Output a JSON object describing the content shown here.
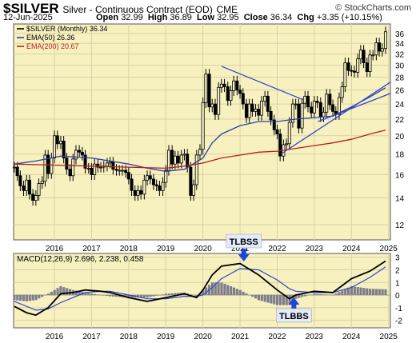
{
  "header": {
    "symbol": "$SILVER",
    "name": "Silver - Continuous Contract (EOD)",
    "exchange": "CME",
    "credit": "© StockCharts.com",
    "date": "12-Jun-2025",
    "open_label": "Open",
    "open": "32.99",
    "high_label": "High",
    "high": "36.89",
    "low_label": "Low",
    "low": "32.95",
    "close_label": "Close",
    "close": "36.34",
    "chg_label": "Chg",
    "chg": "+3.35 (+10.15%)"
  },
  "colors": {
    "panel_bg": "#f7f1c0",
    "candle": "#000000",
    "ema50": "#2d3fa8",
    "ema200": "#b81e1e",
    "trendline": "#3344cc",
    "macd": "#000000",
    "signal": "#3344cc",
    "histogram": "#7d7d8c",
    "annotation_bg": "#e3ebfa",
    "arrow": "#1d46d8"
  },
  "chart_data": [
    {
      "type": "candlestick",
      "timeframe": "monthly",
      "legend": [
        {
          "key": "price",
          "label": "$SILVER (Monthly) 36.34"
        },
        {
          "key": "ema50",
          "label": "EMA(50) 26.36"
        },
        {
          "key": "ema200",
          "label": "EMA(200) 20.67"
        }
      ],
      "yscale": "log",
      "ylim": [
        11,
        38
      ],
      "yticks": [
        12,
        14,
        16,
        18,
        20,
        22,
        24,
        26,
        28,
        30,
        32,
        34,
        36
      ],
      "xlim": [
        2015.4,
        2025.55
      ],
      "xticks": [
        "2016",
        "2017",
        "2018",
        "2019",
        "2020",
        "2021",
        "2022",
        "2023",
        "2024",
        "2025"
      ],
      "grid": true,
      "close": [
        [
          2015.42,
          16.7
        ],
        [
          2015.5,
          15.9
        ],
        [
          2015.58,
          15.0
        ],
        [
          2015.67,
          14.6
        ],
        [
          2015.75,
          15.5
        ],
        [
          2015.83,
          14.3
        ],
        [
          2015.92,
          13.8
        ],
        [
          2016.0,
          14.2
        ],
        [
          2016.08,
          15.2
        ],
        [
          2016.17,
          15.4
        ],
        [
          2016.25,
          17.9
        ],
        [
          2016.33,
          16.1
        ],
        [
          2016.42,
          17.6
        ],
        [
          2016.5,
          20.0
        ],
        [
          2016.58,
          19.1
        ],
        [
          2016.67,
          19.4
        ],
        [
          2016.75,
          17.6
        ],
        [
          2016.83,
          16.5
        ],
        [
          2016.92,
          15.9
        ],
        [
          2017.0,
          17.5
        ],
        [
          2017.08,
          18.4
        ],
        [
          2017.17,
          18.2
        ],
        [
          2017.25,
          17.9
        ],
        [
          2017.33,
          16.6
        ],
        [
          2017.42,
          16.6
        ],
        [
          2017.5,
          16.0
        ],
        [
          2017.58,
          17.0
        ],
        [
          2017.67,
          16.7
        ],
        [
          2017.75,
          16.7
        ],
        [
          2017.83,
          16.8
        ],
        [
          2017.92,
          17.1
        ],
        [
          2018.0,
          17.2
        ],
        [
          2018.08,
          16.5
        ],
        [
          2018.17,
          16.4
        ],
        [
          2018.25,
          16.4
        ],
        [
          2018.33,
          16.4
        ],
        [
          2018.42,
          16.2
        ],
        [
          2018.5,
          15.6
        ],
        [
          2018.58,
          14.6
        ],
        [
          2018.67,
          14.2
        ],
        [
          2018.75,
          14.6
        ],
        [
          2018.83,
          14.3
        ],
        [
          2018.92,
          15.5
        ],
        [
          2019.0,
          15.9
        ],
        [
          2019.08,
          15.6
        ],
        [
          2019.17,
          15.1
        ],
        [
          2019.25,
          15.0
        ],
        [
          2019.33,
          14.6
        ],
        [
          2019.42,
          15.3
        ],
        [
          2019.5,
          16.4
        ],
        [
          2019.58,
          18.4
        ],
        [
          2019.67,
          17.0
        ],
        [
          2019.75,
          17.8
        ],
        [
          2019.83,
          17.1
        ],
        [
          2019.92,
          17.9
        ],
        [
          2020.0,
          18.0
        ],
        [
          2020.08,
          16.7
        ],
        [
          2020.17,
          14.2
        ],
        [
          2020.25,
          15.1
        ],
        [
          2020.33,
          17.9
        ],
        [
          2020.42,
          18.5
        ],
        [
          2020.5,
          24.2
        ],
        [
          2020.58,
          28.5
        ],
        [
          2020.67,
          23.6
        ],
        [
          2020.75,
          24.0
        ],
        [
          2020.83,
          22.6
        ],
        [
          2020.92,
          26.4
        ],
        [
          2021.0,
          26.9
        ],
        [
          2021.08,
          26.5
        ],
        [
          2021.17,
          24.5
        ],
        [
          2021.25,
          25.9
        ],
        [
          2021.33,
          27.4
        ],
        [
          2021.42,
          26.0
        ],
        [
          2021.5,
          25.5
        ],
        [
          2021.58,
          24.0
        ],
        [
          2021.67,
          22.2
        ],
        [
          2021.75,
          24.0
        ],
        [
          2021.83,
          23.0
        ],
        [
          2021.92,
          23.3
        ],
        [
          2022.0,
          22.5
        ],
        [
          2022.08,
          24.4
        ],
        [
          2022.17,
          25.1
        ],
        [
          2022.25,
          23.0
        ],
        [
          2022.33,
          21.9
        ],
        [
          2022.42,
          20.7
        ],
        [
          2022.5,
          20.2
        ],
        [
          2022.58,
          17.8
        ],
        [
          2022.67,
          19.0
        ],
        [
          2022.75,
          19.1
        ],
        [
          2022.83,
          21.6
        ],
        [
          2022.92,
          24.0
        ],
        [
          2023.0,
          24.0
        ],
        [
          2023.08,
          20.9
        ],
        [
          2023.17,
          24.1
        ],
        [
          2023.25,
          25.1
        ],
        [
          2023.33,
          23.6
        ],
        [
          2023.42,
          22.8
        ],
        [
          2023.5,
          24.4
        ],
        [
          2023.58,
          24.2
        ],
        [
          2023.67,
          22.3
        ],
        [
          2023.75,
          22.9
        ],
        [
          2023.83,
          25.4
        ],
        [
          2023.92,
          23.9
        ],
        [
          2024.0,
          23.0
        ],
        [
          2024.08,
          22.6
        ],
        [
          2024.17,
          24.9
        ],
        [
          2024.25,
          26.5
        ],
        [
          2024.33,
          30.4
        ],
        [
          2024.42,
          29.1
        ],
        [
          2024.5,
          29.0
        ],
        [
          2024.58,
          28.8
        ],
        [
          2024.67,
          31.1
        ],
        [
          2024.75,
          32.7
        ],
        [
          2024.83,
          30.4
        ],
        [
          2024.92,
          28.9
        ],
        [
          2025.0,
          31.8
        ],
        [
          2025.08,
          31.8
        ],
        [
          2025.17,
          34.1
        ],
        [
          2025.25,
          32.5
        ],
        [
          2025.33,
          33.0
        ],
        [
          2025.42,
          36.34
        ]
      ],
      "ema50": [
        [
          2015.42,
          17.0
        ],
        [
          2016.0,
          17.3
        ],
        [
          2016.67,
          17.8
        ],
        [
          2017.5,
          17.6
        ],
        [
          2018.0,
          17.3
        ],
        [
          2018.5,
          17.0
        ],
        [
          2019.0,
          16.6
        ],
        [
          2019.5,
          16.3
        ],
        [
          2020.0,
          16.5
        ],
        [
          2020.5,
          17.6
        ],
        [
          2020.75,
          19.2
        ],
        [
          2021.0,
          20.2
        ],
        [
          2021.5,
          21.2
        ],
        [
          2022.0,
          21.7
        ],
        [
          2022.5,
          21.7
        ],
        [
          2023.0,
          22.0
        ],
        [
          2023.5,
          22.2
        ],
        [
          2024.0,
          22.4
        ],
        [
          2024.5,
          23.6
        ],
        [
          2025.0,
          25.0
        ],
        [
          2025.42,
          26.36
        ]
      ],
      "ema200": [
        [
          2015.42,
          17.0
        ],
        [
          2016.5,
          16.9
        ],
        [
          2017.5,
          16.8
        ],
        [
          2018.5,
          16.7
        ],
        [
          2019.5,
          16.6
        ],
        [
          2020.0,
          16.8
        ],
        [
          2020.5,
          17.1
        ],
        [
          2021.0,
          17.6
        ],
        [
          2021.5,
          17.9
        ],
        [
          2022.0,
          18.2
        ],
        [
          2022.5,
          18.3
        ],
        [
          2023.0,
          18.6
        ],
        [
          2023.5,
          18.9
        ],
        [
          2024.0,
          19.2
        ],
        [
          2024.5,
          19.6
        ],
        [
          2025.0,
          20.2
        ],
        [
          2025.42,
          20.67
        ]
      ],
      "trendlines": [
        [
          [
            2021.0,
            29.8
          ],
          [
            2023.2,
            24.6
          ]
        ],
        [
          [
            2022.6,
            18.0
          ],
          [
            2025.55,
            27.2
          ]
        ],
        [
          [
            2023.6,
            21.7
          ],
          [
            2025.55,
            25.5
          ]
        ]
      ]
    },
    {
      "type": "macd",
      "legend": "MACD(12,26,9) 2.696, 2.238, 0.458",
      "ylim": [
        -2.6,
        3.3
      ],
      "yticks": [
        -2,
        -1,
        0,
        1,
        2,
        3
      ],
      "xticks": [
        "2016",
        "2017",
        "2018",
        "2019",
        "2020",
        "2021",
        "2022",
        "2023",
        "2024",
        "2025"
      ],
      "macd": [
        [
          2015.42,
          -0.9
        ],
        [
          2015.75,
          -1.4
        ],
        [
          2016.0,
          -1.6
        ],
        [
          2016.33,
          -1.0
        ],
        [
          2016.67,
          0.1
        ],
        [
          2017.0,
          0.2
        ],
        [
          2017.33,
          0.4
        ],
        [
          2017.75,
          0.3
        ],
        [
          2018.0,
          0.2
        ],
        [
          2018.5,
          -0.2
        ],
        [
          2019.0,
          -0.5
        ],
        [
          2019.5,
          -0.2
        ],
        [
          2020.0,
          0.1
        ],
        [
          2020.33,
          -0.2
        ],
        [
          2020.5,
          0.4
        ],
        [
          2020.75,
          1.6
        ],
        [
          2021.0,
          2.3
        ],
        [
          2021.5,
          2.5
        ],
        [
          2022.0,
          1.6
        ],
        [
          2022.5,
          0.4
        ],
        [
          2022.83,
          -0.3
        ],
        [
          2023.0,
          0.0
        ],
        [
          2023.5,
          0.3
        ],
        [
          2024.0,
          0.2
        ],
        [
          2024.5,
          1.3
        ],
        [
          2025.0,
          1.9
        ],
        [
          2025.42,
          2.696
        ]
      ],
      "signal": [
        [
          2015.42,
          -0.5
        ],
        [
          2015.75,
          -0.9
        ],
        [
          2016.0,
          -1.2
        ],
        [
          2016.33,
          -1.1
        ],
        [
          2016.67,
          -0.6
        ],
        [
          2017.0,
          -0.2
        ],
        [
          2017.33,
          0.2
        ],
        [
          2017.75,
          0.3
        ],
        [
          2018.0,
          0.3
        ],
        [
          2018.5,
          0.0
        ],
        [
          2019.0,
          -0.3
        ],
        [
          2019.5,
          -0.3
        ],
        [
          2020.0,
          -0.1
        ],
        [
          2020.33,
          -0.1
        ],
        [
          2020.5,
          0.0
        ],
        [
          2020.75,
          0.6
        ],
        [
          2021.0,
          1.3
        ],
        [
          2021.5,
          2.1
        ],
        [
          2022.0,
          2.0
        ],
        [
          2022.5,
          1.2
        ],
        [
          2022.83,
          0.5
        ],
        [
          2023.0,
          0.3
        ],
        [
          2023.5,
          0.2
        ],
        [
          2024.0,
          0.2
        ],
        [
          2024.5,
          0.6
        ],
        [
          2025.0,
          1.4
        ],
        [
          2025.42,
          2.238
        ]
      ],
      "histogram": [
        [
          2015.42,
          -0.4
        ],
        [
          2015.75,
          -0.5
        ],
        [
          2016.0,
          -0.4
        ],
        [
          2016.33,
          0.1
        ],
        [
          2016.67,
          0.7
        ],
        [
          2017.0,
          0.4
        ],
        [
          2017.33,
          0.2
        ],
        [
          2017.75,
          0.0
        ],
        [
          2018.0,
          -0.1
        ],
        [
          2018.5,
          -0.2
        ],
        [
          2019.0,
          -0.2
        ],
        [
          2019.5,
          0.1
        ],
        [
          2020.0,
          0.2
        ],
        [
          2020.33,
          -0.1
        ],
        [
          2020.5,
          0.4
        ],
        [
          2020.75,
          1.0
        ],
        [
          2021.0,
          1.0
        ],
        [
          2021.5,
          0.4
        ],
        [
          2022.0,
          -0.4
        ],
        [
          2022.5,
          -0.8
        ],
        [
          2022.83,
          -0.8
        ],
        [
          2023.0,
          -0.3
        ],
        [
          2023.5,
          0.1
        ],
        [
          2024.0,
          0.0
        ],
        [
          2024.5,
          0.7
        ],
        [
          2025.0,
          0.5
        ],
        [
          2025.42,
          0.458
        ]
      ],
      "annotations": [
        {
          "label": "TLBSS",
          "x": 2021.6,
          "arrow": "down"
        },
        {
          "label": "TLBBS",
          "x": 2022.95,
          "arrow": "up"
        }
      ]
    }
  ]
}
